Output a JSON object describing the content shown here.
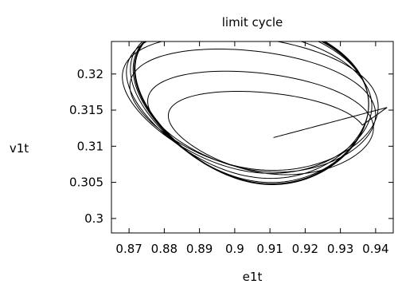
{
  "chart_data": {
    "type": "line",
    "title": "limit cycle",
    "xlabel": "e1t",
    "ylabel": "v1t",
    "xlim": [
      0.865,
      0.945
    ],
    "ylim": [
      0.298,
      0.3245
    ],
    "x_ticks": [
      "0.87",
      "0.88",
      "0.89",
      "0.9",
      "0.91",
      "0.92",
      "0.93",
      "0.94"
    ],
    "x_tick_values": [
      0.87,
      0.88,
      0.89,
      0.9,
      0.91,
      0.92,
      0.93,
      0.94
    ],
    "y_ticks": [
      "0.3",
      "0.305",
      "0.31",
      "0.315",
      "0.32"
    ],
    "y_tick_values": [
      0.3,
      0.305,
      0.31,
      0.315,
      0.32
    ],
    "grid": false,
    "legend": "none",
    "series": [
      {
        "start": [
          0.911,
          0.3112
        ],
        "line_color": "#000000",
        "loops": [
          {
            "center": [
              0.9105,
              0.3117
            ],
            "rx": 0.0265,
            "ry": 0.0052,
            "phase": 0.05
          },
          {
            "center": [
              0.9085,
              0.3128
            ],
            "rx": 0.0305,
            "ry": 0.0067,
            "phase": 0.9
          },
          {
            "center": [
              0.906,
              0.3148
            ],
            "rx": 0.0335,
            "ry": 0.008,
            "phase": 1.8
          },
          {
            "center": [
              0.9042,
              0.3159
            ],
            "rx": 0.036,
            "ry": 0.009,
            "phase": 2.7
          },
          {
            "center": [
              0.9038,
              0.3161
            ],
            "rx": 0.0345,
            "ry": 0.0098,
            "phase": 3.6
          },
          {
            "center": [
              0.904,
              0.3164
            ],
            "rx": 0.0335,
            "ry": 0.0108,
            "phase": 4.5
          },
          {
            "center": [
              0.9045,
              0.3163
            ],
            "rx": 0.033,
            "ry": 0.0112,
            "phase": 5.4
          },
          {
            "center": [
              0.9047,
              0.3163
            ],
            "rx": 0.0328,
            "ry": 0.0113,
            "phase": 0.3
          },
          {
            "center": [
              0.9048,
              0.3163
            ],
            "rx": 0.0327,
            "ry": 0.0113,
            "phase": 1.1
          },
          {
            "center": [
              0.9048,
              0.3164
            ],
            "rx": 0.0327,
            "ry": 0.0113,
            "phase": 2.0
          },
          {
            "center": [
              0.9049,
              0.3163
            ],
            "rx": 0.0326,
            "ry": 0.0114,
            "phase": 2.9
          },
          {
            "center": [
              0.9048,
              0.3164
            ],
            "rx": 0.0327,
            "ry": 0.0114,
            "phase": 3.8
          }
        ]
      }
    ]
  }
}
